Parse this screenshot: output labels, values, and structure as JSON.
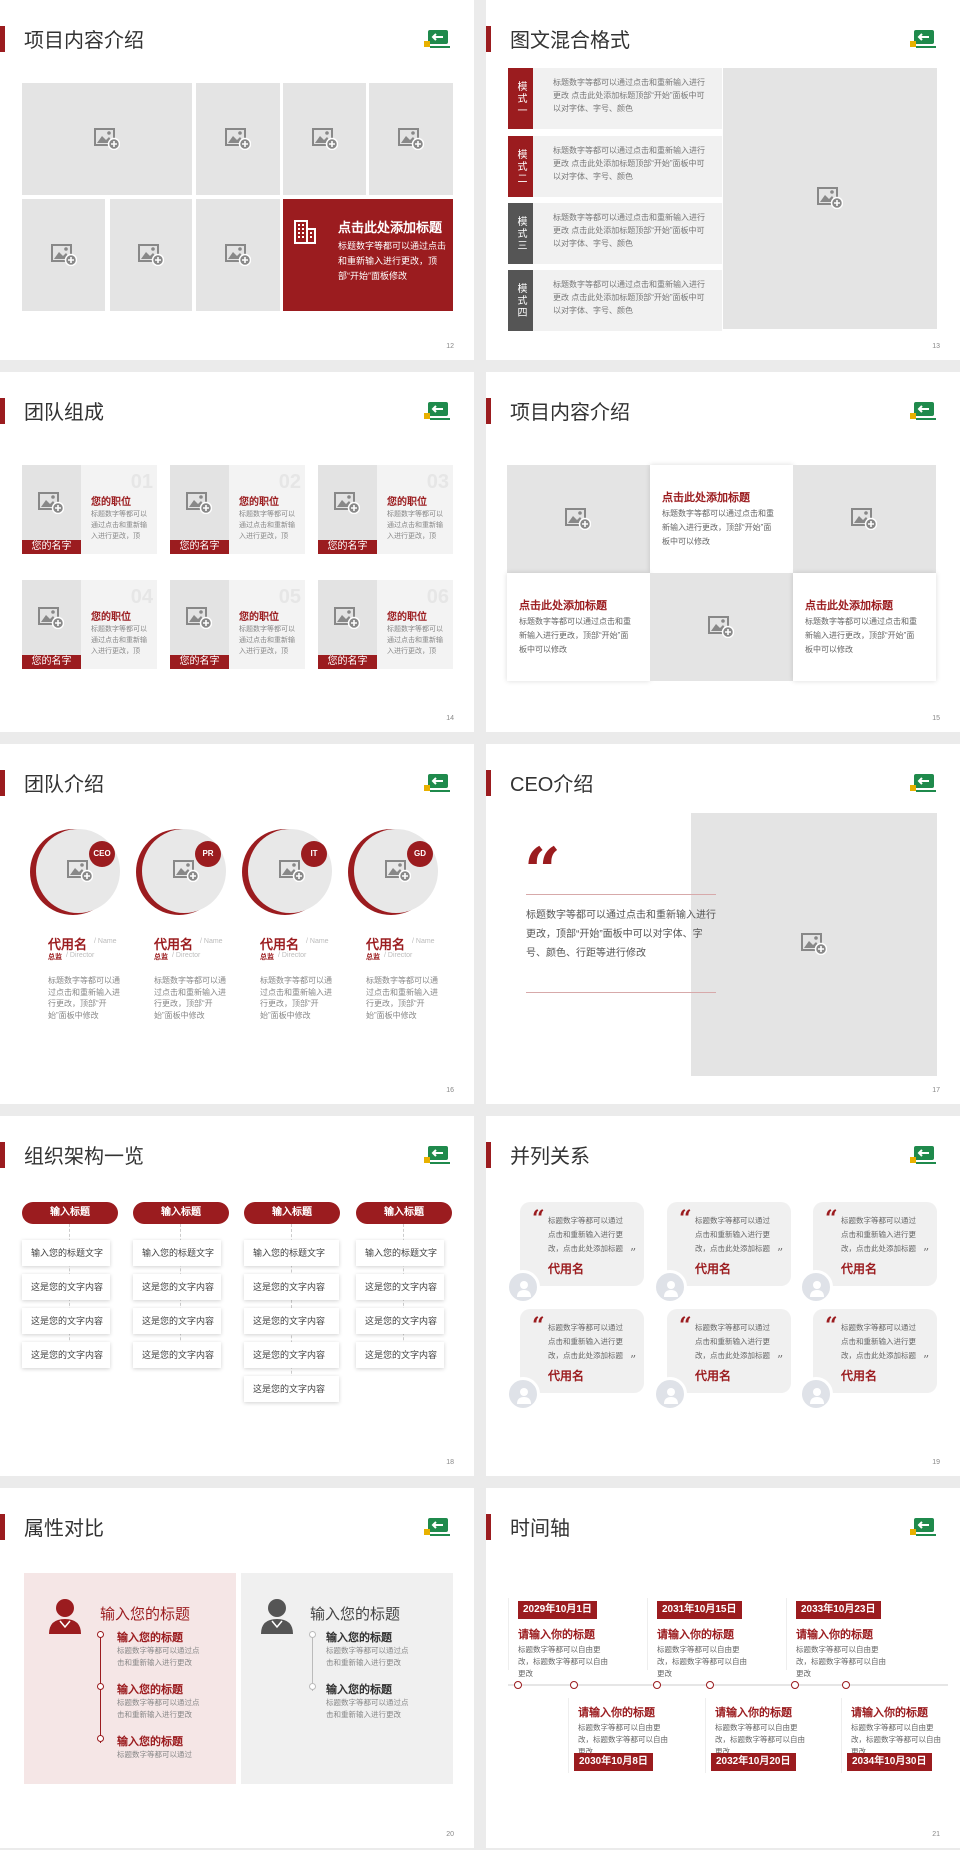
{
  "colors": {
    "accent": "#9b1c1f",
    "dark_label": "#555555",
    "placeholder": "#e4e4e4"
  },
  "icons": {
    "image_placeholder": "image-plus-icon",
    "logo": "logo-icon",
    "building": "building-icon",
    "quote": "quote-icon",
    "avatar": "user-avatar-icon",
    "female_user": "female-user-icon",
    "male_user": "male-user-icon"
  },
  "slides": [
    {
      "page": "12",
      "title": "项目内容介绍",
      "feature": {
        "title": "点击此处添加标题",
        "body": "标题数字等都可以通过点击和重新输入进行更改，顶部“开始”面板修改"
      }
    },
    {
      "page": "13",
      "title": "图文混合格式",
      "rows": [
        {
          "label": "模式一",
          "text": "标题数字等都可以通过点击和重新输入进行更改 点击此处添加标题顶部“开始”面板中可以对字体、字号、颜色"
        },
        {
          "label": "模式二",
          "text": "标题数字等都可以通过点击和重新输入进行更改 点击此处添加标题顶部“开始”面板中可以对字体、字号、颜色"
        },
        {
          "label": "模式三",
          "text": "标题数字等都可以通过点击和重新输入进行更改 点击此处添加标题顶部“开始”面板中可以对字体、字号、颜色"
        },
        {
          "label": "模式四",
          "text": "标题数字等都可以通过点击和重新输入进行更改 点击此处添加标题顶部“开始”面板中可以对字体、字号、颜色"
        }
      ]
    },
    {
      "page": "14",
      "title": "团队组成",
      "cards": [
        {
          "num": "01",
          "position": "您的职位",
          "desc": "标题数字等都可以通过点击和重新输入进行更改，顶部“开始”",
          "name": "您的名字"
        },
        {
          "num": "02",
          "position": "您的职位",
          "desc": "标题数字等都可以通过点击和重新输入进行更改，顶部“开始”",
          "name": "您的名字"
        },
        {
          "num": "03",
          "position": "您的职位",
          "desc": "标题数字等都可以通过点击和重新输入进行更改，顶部“开始”",
          "name": "您的名字"
        },
        {
          "num": "04",
          "position": "您的职位",
          "desc": "标题数字等都可以通过点击和重新输入进行更改，顶部“开始”",
          "name": "您的名字"
        },
        {
          "num": "05",
          "position": "您的职位",
          "desc": "标题数字等都可以通过点击和重新输入进行更改，顶部“开始”",
          "name": "您的名字"
        },
        {
          "num": "06",
          "position": "您的职位",
          "desc": "标题数字等都可以通过点击和重新输入进行更改，顶部“开始”",
          "name": "您的名字"
        }
      ]
    },
    {
      "page": "15",
      "title": "项目内容介绍",
      "items": [
        {
          "title": "点击此处添加标题",
          "body": "标题数字等都可以通过点击和重新输入进行更改，顶部“开始”面板中可以修改"
        },
        {
          "title": "点击此处添加标题",
          "body": "标题数字等都可以通过点击和重新输入进行更改，顶部“开始”面板中可以修改"
        },
        {
          "title": "点击此处添加标题",
          "body": "标题数字等都可以通过点击和重新输入进行更改，顶部“开始”面板中可以修改"
        }
      ]
    },
    {
      "page": "16",
      "title": "团队介绍",
      "members": [
        {
          "badge": "CEO",
          "name": "代用名",
          "name_en": "/ Name",
          "role": "总监",
          "role_en": "/ Director",
          "desc": "标题数字等都可以通过点击和重新输入进行更改，顶部“开始”面板中修改"
        },
        {
          "badge": "PR",
          "name": "代用名",
          "name_en": "/ Name",
          "role": "总监",
          "role_en": "/ Director",
          "desc": "标题数字等都可以通过点击和重新输入进行更改，顶部“开始”面板中修改"
        },
        {
          "badge": "IT",
          "name": "代用名",
          "name_en": "/ Name",
          "role": "总监",
          "role_en": "/ Director",
          "desc": "标题数字等都可以通过点击和重新输入进行更改，顶部“开始”面板中修改"
        },
        {
          "badge": "GD",
          "name": "代用名",
          "name_en": "/ Name",
          "role": "总监",
          "role_en": "/ Director",
          "desc": "标题数字等都可以通过点击和重新输入进行更改，顶部“开始”面板中修改"
        }
      ]
    },
    {
      "page": "17",
      "title": "CEO介绍",
      "quote_mark": "“",
      "quote": "标题数字等都可以通过点击和重新输入进行更改，顶部“开始”面板中可以对字体、字号、颜色、行距等进行修改"
    },
    {
      "page": "18",
      "title": "组织架构一览",
      "columns": [
        {
          "header": "输入标题",
          "items": [
            "输入您的标题文字",
            "这是您的文字内容",
            "这是您的文字内容",
            "这是您的文字内容"
          ]
        },
        {
          "header": "输入标题",
          "items": [
            "输入您的标题文字",
            "这是您的文字内容",
            "这是您的文字内容",
            "这是您的文字内容"
          ]
        },
        {
          "header": "输入标题",
          "items": [
            "输入您的标题文字",
            "这是您的文字内容",
            "这是您的文字内容",
            "这是您的文字内容",
            "这是您的文字内容"
          ]
        },
        {
          "header": "输入标题",
          "items": [
            "输入您的标题文字",
            "这是您的文字内容",
            "这是您的文字内容",
            "这是您的文字内容"
          ]
        }
      ]
    },
    {
      "page": "19",
      "title": "并列关系",
      "open_quote": "“",
      "close_quote": "”",
      "quotes": [
        {
          "text": "标题数字等都可以通过点击和重新输入进行更改，点击此处添加标题",
          "name": "代用名"
        },
        {
          "text": "标题数字等都可以通过点击和重新输入进行更改，点击此处添加标题",
          "name": "代用名"
        },
        {
          "text": "标题数字等都可以通过点击和重新输入进行更改，点击此处添加标题",
          "name": "代用名"
        },
        {
          "text": "标题数字等都可以通过点击和重新输入进行更改，点击此处添加标题",
          "name": "代用名"
        },
        {
          "text": "标题数字等都可以通过点击和重新输入进行更改，点击此处添加标题",
          "name": "代用名"
        },
        {
          "text": "标题数字等都可以通过点击和重新输入进行更改，点击此处添加标题",
          "name": "代用名"
        }
      ]
    },
    {
      "page": "20",
      "title": "属性对比",
      "panels": [
        {
          "heading": "输入您的标题",
          "items": [
            {
              "title": "输入您的标题",
              "body": "标题数字等都可以通过点击和重新输入进行更改"
            },
            {
              "title": "输入您的标题",
              "body": "标题数字等都可以通过点击和重新输入进行更改"
            },
            {
              "title": "输入您的标题",
              "body": "标题数字等都可以通过"
            }
          ]
        },
        {
          "heading": "输入您的标题",
          "items": [
            {
              "title": "输入您的标题",
              "body": "标题数字等都可以通过点击和重新输入进行更改"
            },
            {
              "title": "输入您的标题",
              "body": "标题数字等都可以通过点击和重新输入进行更改"
            }
          ]
        }
      ]
    },
    {
      "page": "21",
      "title": "时间轴",
      "events": [
        {
          "date": "2029年10月1日",
          "title": "请输入你的标题",
          "body": "标题数字等都可以自由更改，标题数字等都可以自由更改"
        },
        {
          "date": "2030年10月8日",
          "title": "请输入你的标题",
          "body": "标题数字等都可以自由更改，标题数字等都可以自由更改"
        },
        {
          "date": "2031年10月15日",
          "title": "请输入你的标题",
          "body": "标题数字等都可以自由更改，标题数字等都可以自由更改"
        },
        {
          "date": "2032年10月20日",
          "title": "请输入你的标题",
          "body": "标题数字等都可以自由更改，标题数字等都可以自由更改"
        },
        {
          "date": "2033年10月23日",
          "title": "请输入你的标题",
          "body": "标题数字等都可以自由更改，标题数字等都可以自由更改"
        },
        {
          "date": "2034年10月30日",
          "title": "请输入你的标题",
          "body": "标题数字等都可以自由更改，标题数字等都可以自由更改"
        }
      ]
    }
  ]
}
